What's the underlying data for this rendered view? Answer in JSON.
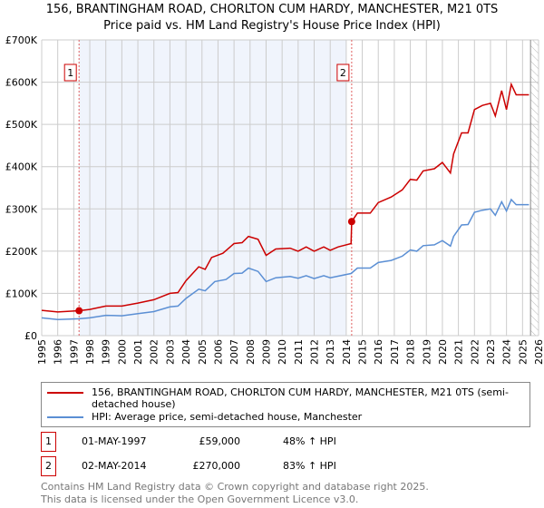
{
  "title_line1": "156, BRANTINGHAM ROAD, CHORLTON CUM HARDY, MANCHESTER, M21 0TS",
  "title_line2": "Price paid vs. HM Land Registry's House Price Index (HPI)",
  "chart_data": {
    "type": "line",
    "title": "156, BRANTINGHAM ROAD, CHORLTON CUM HARDY, MANCHESTER, M21 0TS — Price paid vs. HM Land Registry's House Price Index (HPI)",
    "xlim": [
      1995,
      2026
    ],
    "ylim": [
      0,
      700000
    ],
    "x_ticks": [
      "1995",
      "1996",
      "1997",
      "1998",
      "1999",
      "2000",
      "2001",
      "2002",
      "2003",
      "2004",
      "2005",
      "2006",
      "2007",
      "2008",
      "2009",
      "2010",
      "2011",
      "2012",
      "2013",
      "2014",
      "2015",
      "2016",
      "2017",
      "2018",
      "2019",
      "2020",
      "2021",
      "2022",
      "2023",
      "2024",
      "2025",
      "2026"
    ],
    "y_ticks": [
      {
        "v": 0,
        "label": "£0"
      },
      {
        "v": 100000,
        "label": "£100K"
      },
      {
        "v": 200000,
        "label": "£200K"
      },
      {
        "v": 300000,
        "label": "£300K"
      },
      {
        "v": 400000,
        "label": "£400K"
      },
      {
        "v": 500000,
        "label": "£500K"
      },
      {
        "v": 600000,
        "label": "£600K"
      },
      {
        "v": 700000,
        "label": "£700K"
      }
    ],
    "series": [
      {
        "name": "156, BRANTINGHAM ROAD, CHORLTON CUM HARDY, MANCHESTER, M21 0TS (semi-detached house)",
        "color": "#cc0000",
        "x": [
          1995,
          1996,
          1997.33,
          1998,
          1999,
          2000,
          2001,
          2002,
          2003,
          2003.5,
          2004,
          2004.8,
          2005.2,
          2005.6,
          2006.3,
          2007,
          2007.5,
          2007.9,
          2008.5,
          2009,
          2009.6,
          2010.5,
          2011,
          2011.5,
          2012,
          2012.6,
          2013,
          2013.5,
          2014.3,
          2014.34,
          2014.7,
          2015.5,
          2016,
          2016.8,
          2017.5,
          2018,
          2018.4,
          2018.8,
          2019.5,
          2020,
          2020.5,
          2020.7,
          2021.2,
          2021.6,
          2022,
          2022.5,
          2023,
          2023.3,
          2023.7,
          2024,
          2024.3,
          2024.6,
          2025.4
        ],
        "y": [
          60000,
          56000,
          59000,
          62000,
          70000,
          70000,
          77000,
          85000,
          100000,
          102000,
          130000,
          163000,
          157000,
          185000,
          195000,
          218000,
          220000,
          235000,
          228000,
          190000,
          205000,
          207000,
          200000,
          210000,
          200000,
          210000,
          202000,
          210000,
          218000,
          270000,
          290000,
          290000,
          315000,
          328000,
          345000,
          370000,
          368000,
          390000,
          395000,
          410000,
          385000,
          430000,
          480000,
          480000,
          535000,
          545000,
          550000,
          520000,
          580000,
          535000,
          595000,
          570000,
          570000
        ]
      },
      {
        "name": "HPI: Average price, semi-detached house, Manchester",
        "color": "#5b8fd4",
        "x": [
          1995,
          1996,
          1997.33,
          1998,
          1999,
          2000,
          2001,
          2002,
          2003,
          2003.5,
          2004,
          2004.8,
          2005.2,
          2005.8,
          2006.5,
          2007,
          2007.5,
          2007.9,
          2008.5,
          2009,
          2009.6,
          2010.5,
          2011,
          2011.5,
          2012,
          2012.6,
          2013,
          2014.3,
          2014.7,
          2015.5,
          2016,
          2016.8,
          2017.5,
          2018,
          2018.4,
          2018.8,
          2019.5,
          2020,
          2020.5,
          2020.7,
          2021.2,
          2021.6,
          2022,
          2022.5,
          2023,
          2023.3,
          2023.7,
          2024,
          2024.3,
          2024.6,
          2025.4
        ],
        "y": [
          42000,
          38000,
          40000,
          42000,
          48000,
          47000,
          52000,
          57000,
          68000,
          70000,
          88000,
          110000,
          106000,
          128000,
          133000,
          147000,
          148000,
          160000,
          152000,
          128000,
          137000,
          140000,
          136000,
          142000,
          135000,
          142000,
          137000,
          147000,
          160000,
          160000,
          173000,
          178000,
          188000,
          203000,
          200000,
          213000,
          215000,
          225000,
          212000,
          235000,
          262000,
          263000,
          292000,
          297000,
          300000,
          285000,
          317000,
          295000,
          322000,
          310000,
          310000
        ]
      }
    ],
    "sales": [
      {
        "label": "1",
        "x": 1997.33,
        "y": 59000
      },
      {
        "label": "2",
        "x": 2014.34,
        "y": 270000
      }
    ],
    "shaded_range": [
      1997.33,
      2014.0
    ],
    "hatched_from": 2025.5,
    "grid": true
  },
  "legend": {
    "red": "156, BRANTINGHAM ROAD, CHORLTON CUM HARDY, MANCHESTER, M21 0TS (semi-detached house)",
    "blue": "HPI: Average price, semi-detached house, Manchester"
  },
  "transactions": [
    {
      "num": "1",
      "date": "01-MAY-1997",
      "price": "£59,000",
      "hpi": "48% ↑ HPI"
    },
    {
      "num": "2",
      "date": "02-MAY-2014",
      "price": "£270,000",
      "hpi": "83% ↑ HPI"
    }
  ],
  "footer": {
    "line1": "Contains HM Land Registry data © Crown copyright and database right 2025.",
    "line2": "This data is licensed under the Open Government Licence v3.0."
  }
}
